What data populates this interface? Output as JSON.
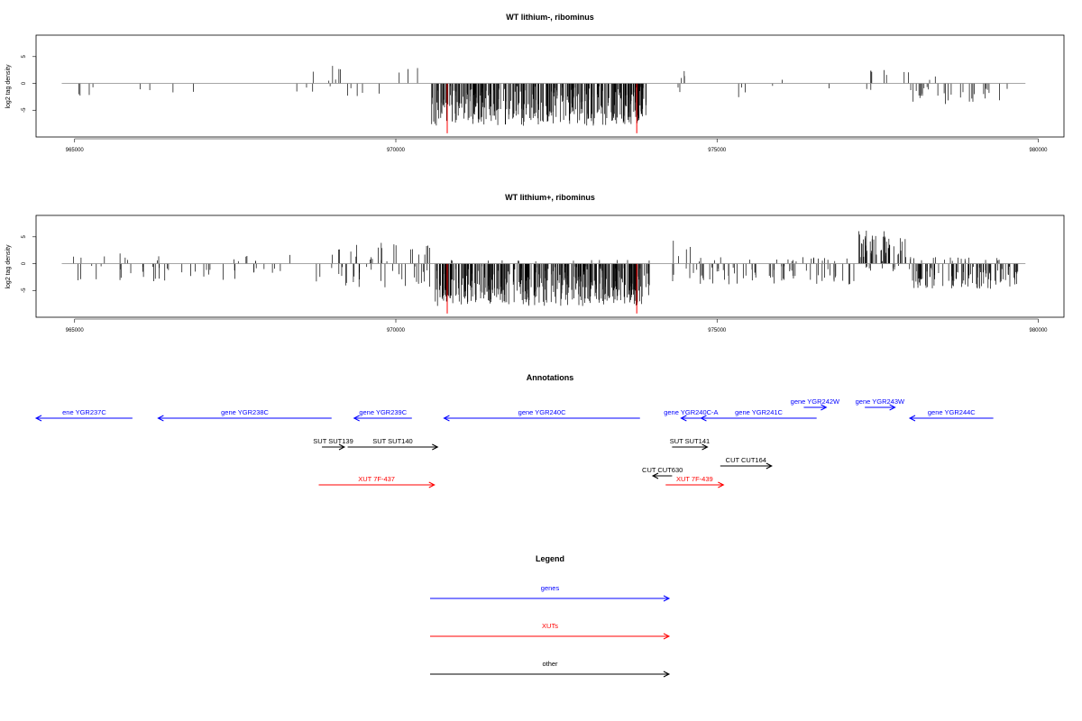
{
  "chart_data": [
    {
      "type": "bar",
      "title": "WT lithium-, ribominus",
      "xlabel": "",
      "ylabel": "log2 tag density",
      "xlim": [
        964400,
        980400
      ],
      "ylim": [
        -10,
        9
      ],
      "xticks": [
        965000,
        970000,
        975000,
        980000
      ],
      "yticks": [
        5,
        0,
        -5
      ],
      "bar_color": "#000000",
      "highlight_color": "#ff0000",
      "highlights": [
        970800,
        973750
      ],
      "profile": [
        {
          "from": 964800,
          "to": 970500,
          "up": 0.3,
          "down": -2,
          "density": 0.01,
          "seed": 11
        },
        {
          "from": 968500,
          "to": 970400,
          "up": 3,
          "down": -2,
          "density": 0.035,
          "seed": 12
        },
        {
          "from": 970550,
          "to": 973900,
          "up": 0,
          "down": -7.5,
          "density": 0.5,
          "seed": 13
        },
        {
          "from": 974300,
          "to": 974800,
          "up": 3,
          "down": -2.5,
          "density": 0.05,
          "seed": 14
        },
        {
          "from": 974800,
          "to": 977200,
          "up": 0.5,
          "down": -2.5,
          "density": 0.012,
          "seed": 15
        },
        {
          "from": 977200,
          "to": 978000,
          "up": 3,
          "down": -1,
          "density": 0.05,
          "seed": 16
        },
        {
          "from": 978000,
          "to": 979800,
          "up": 1,
          "down": -3.5,
          "density": 0.08,
          "seed": 17
        }
      ]
    },
    {
      "type": "bar",
      "title": "WT lithium+, ribominus",
      "xlabel": "",
      "ylabel": "log2 tag density",
      "xlim": [
        964400,
        980400
      ],
      "ylim": [
        -10,
        9
      ],
      "xticks": [
        965000,
        970000,
        975000,
        980000
      ],
      "yticks": [
        5,
        0,
        -5
      ],
      "bar_color": "#000000",
      "highlight_color": "#ff0000",
      "highlights": [
        970800,
        973750
      ],
      "profile": [
        {
          "from": 964800,
          "to": 969000,
          "up": 1.5,
          "down": -3,
          "density": 0.06,
          "seed": 21
        },
        {
          "from": 969000,
          "to": 970600,
          "up": 3.5,
          "down": -4,
          "density": 0.15,
          "seed": 22
        },
        {
          "from": 970600,
          "to": 973950,
          "up": 0.3,
          "down": -7.5,
          "density": 0.55,
          "seed": 23
        },
        {
          "from": 974300,
          "to": 974700,
          "up": 4,
          "down": -3,
          "density": 0.12,
          "seed": 24
        },
        {
          "from": 974700,
          "to": 977200,
          "up": 0.8,
          "down": -3.5,
          "density": 0.15,
          "seed": 25
        },
        {
          "from": 977200,
          "to": 977950,
          "up": 6,
          "down": -1,
          "density": 0.35,
          "seed": 26
        },
        {
          "from": 977950,
          "to": 979700,
          "up": 1,
          "down": -4.5,
          "density": 0.3,
          "seed": 27
        }
      ]
    }
  ],
  "annotations": {
    "title": "Annotations",
    "xlim": [
      964400,
      980400
    ],
    "features": [
      {
        "label": "ene YGR237C",
        "from": 964400,
        "to": 965900,
        "dir": "-",
        "color": "#0000ff",
        "row": 0
      },
      {
        "label": "gene YGR238C",
        "from": 966300,
        "to": 969000,
        "dir": "-",
        "color": "#0000ff",
        "row": 0
      },
      {
        "label": "gene YGR239C",
        "from": 969350,
        "to": 970250,
        "dir": "-",
        "color": "#0000ff",
        "row": 0
      },
      {
        "label": "gene YGR240C",
        "from": 970750,
        "to": 973800,
        "dir": "-",
        "color": "#0000ff",
        "row": 0
      },
      {
        "label": "gene YGR240C-A",
        "from": 974440,
        "to": 974750,
        "dir": "-",
        "color": "#0000ff",
        "row": 0
      },
      {
        "label": "gene YGR241C",
        "from": 974750,
        "to": 976550,
        "dir": "-",
        "color": "#0000ff",
        "row": 0
      },
      {
        "label": "gene YGR242W",
        "from": 976350,
        "to": 976700,
        "dir": "+",
        "color": "#0000ff",
        "row": -1
      },
      {
        "label": "gene YGR243W",
        "from": 977300,
        "to": 977770,
        "dir": "+",
        "color": "#0000ff",
        "row": -1
      },
      {
        "label": "gene YGR244C",
        "from": 978000,
        "to": 979300,
        "dir": "-",
        "color": "#0000ff",
        "row": 0
      },
      {
        "label": "SUT SUT139",
        "from": 968850,
        "to": 969200,
        "dir": "+",
        "color": "#000000",
        "row": 1
      },
      {
        "label": "SUT SUT140",
        "from": 969250,
        "to": 970650,
        "dir": "+",
        "color": "#000000",
        "row": 1
      },
      {
        "label": "SUT SUT141",
        "from": 974300,
        "to": 974850,
        "dir": "+",
        "color": "#000000",
        "row": 1
      },
      {
        "label": "CUT CUT164",
        "from": 975050,
        "to": 975850,
        "dir": "+",
        "color": "#000000",
        "row": 2
      },
      {
        "label": "CUT CUT630",
        "from": 974000,
        "to": 974300,
        "dir": "-",
        "color": "#000000",
        "row": 3
      },
      {
        "label": "XUT 7F-437",
        "from": 968800,
        "to": 970600,
        "dir": "+",
        "color": "#ff0000",
        "row": 4
      },
      {
        "label": "XUT 7F-439",
        "from": 974200,
        "to": 975100,
        "dir": "+",
        "color": "#ff0000",
        "row": 4
      }
    ]
  },
  "legend": {
    "title": "Legend",
    "items": [
      {
        "label": "genes",
        "color": "#0000ff"
      },
      {
        "label": "XUTs",
        "color": "#ff0000"
      },
      {
        "label": "other",
        "color": "#000000"
      }
    ]
  }
}
